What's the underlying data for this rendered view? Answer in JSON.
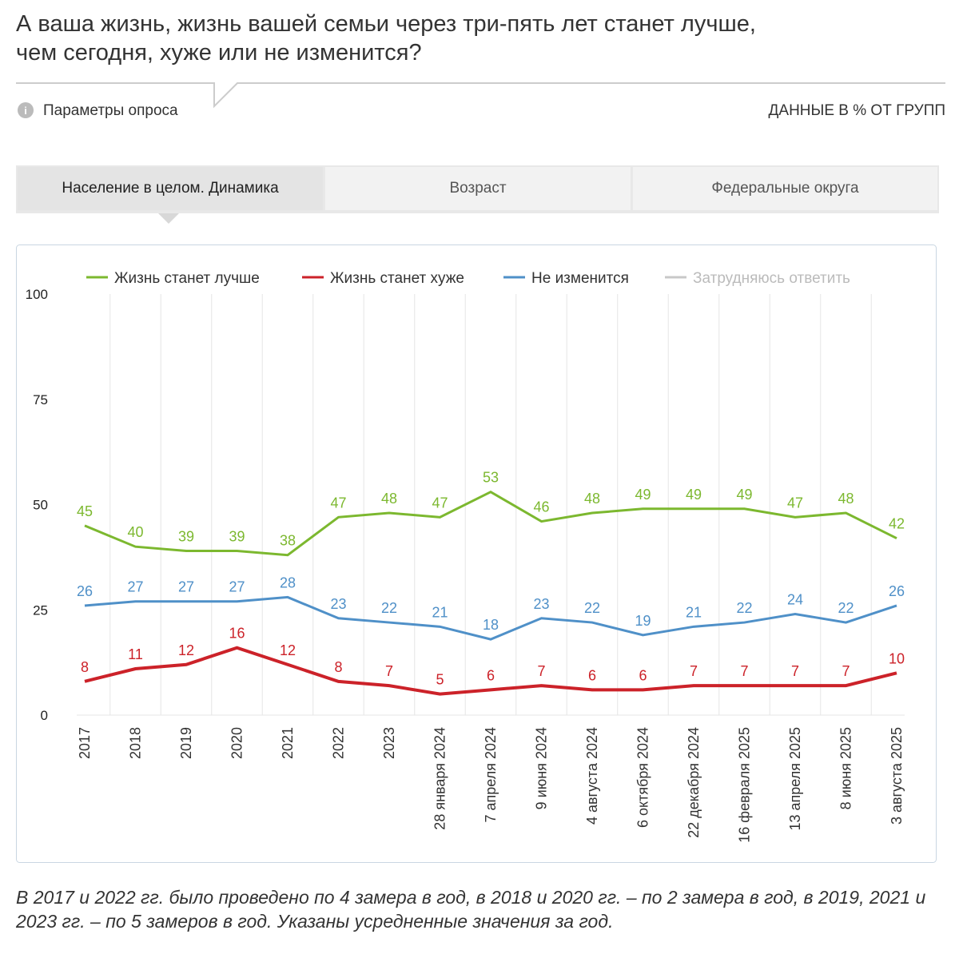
{
  "header": {
    "title_lines": [
      "А ваша жизнь, жизнь вашей семьи через три-пять лет станет лучше,",
      "чем сегодня, хуже или не изменится?"
    ],
    "params": "Параметры опроса",
    "units": "ДАННЫЕ В % ОТ ГРУПП"
  },
  "tabs": [
    "Население в целом. Динамика",
    "Возраст",
    "Федеральные округа"
  ],
  "chart_data": {
    "type": "line",
    "categories": [
      "2017",
      "2018",
      "2019",
      "2020",
      "2021",
      "2022",
      "2023",
      "28 января 2024",
      "7 апреля 2024",
      "9 июня 2024",
      "4 августа 2024",
      "6 октября 2024",
      "22 декабря 2024",
      "16 февраля 2025",
      "13 апреля 2025",
      "8 июня 2025",
      "3 августа 2025"
    ],
    "series": [
      {
        "name": "Жизнь станет лучше",
        "color": "#7cb82f",
        "values": [
          45,
          40,
          39,
          39,
          38,
          47,
          48,
          47,
          53,
          46,
          48,
          49,
          49,
          49,
          47,
          48,
          42
        ]
      },
      {
        "name": "Жизнь станет хуже",
        "color": "#cc2229",
        "values": [
          8,
          11,
          12,
          16,
          12,
          8,
          7,
          5,
          6,
          7,
          6,
          6,
          7,
          7,
          7,
          7,
          10
        ]
      },
      {
        "name": "Не изменится",
        "color": "#4f90c8",
        "values": [
          26,
          27,
          27,
          27,
          28,
          23,
          22,
          21,
          18,
          23,
          22,
          19,
          21,
          22,
          24,
          22,
          26
        ]
      },
      {
        "name": "Затрудняюсь ответить",
        "color": "#c8c8c8",
        "hidden": true
      }
    ],
    "ylim": [
      0,
      100
    ],
    "yticks": [
      0,
      25,
      50,
      75,
      100
    ]
  },
  "note": "В 2017 и 2022 гг. было проведено по 4 замера в год, в 2018 и 2020 гг. – по 2 замера в год, в 2019, 2021 и 2023 гг. – по 5 замеров в год. Указаны усредненные значения за год."
}
